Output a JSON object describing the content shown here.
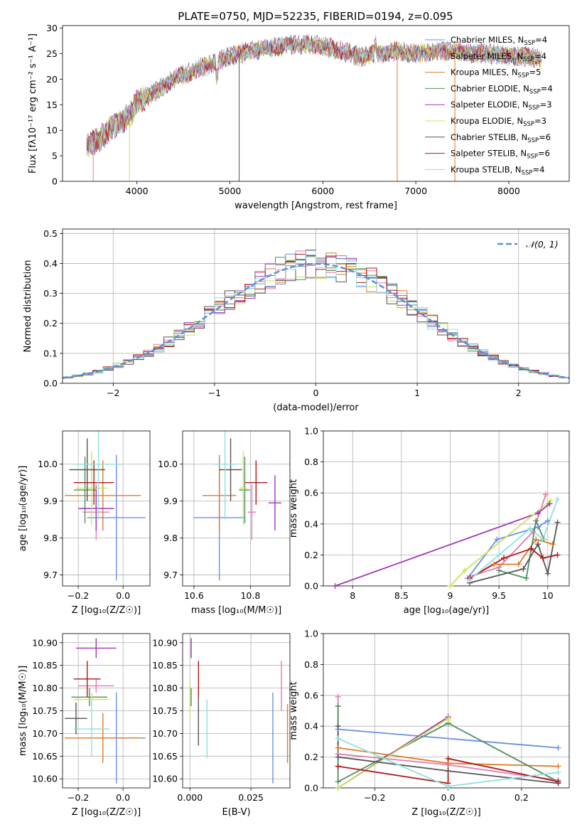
{
  "title": "PLATE=0750, MJD=52235, FIBERID=0194, z=0.095",
  "colors": {
    "Chabrier MILES": "#6a8fe6",
    "Salpeter MILES": "#e27ab6",
    "Kroupa MILES": "#e07b25",
    "Chabrier ELODIE": "#4f8f61",
    "Salpeter ELODIE": "#a233b5",
    "Kroupa ELODIE": "#c9e35d",
    "Chabrier STELIB": "#555555",
    "Salpeter STELIB": "#b01818",
    "Kroupa STELIB": "#8fdfe0",
    "normal": "#5b8fd6",
    "grid": "#b0b0b0"
  },
  "chart_data": [
    {
      "type": "line",
      "id": "spectrum",
      "xlabel": "wavelength [Angstrom, rest frame]",
      "ylabel": "Flux [fλ10⁻¹⁷ erg cm⁻² s⁻¹ A⁻¹]",
      "xlim": [
        3200,
        8650
      ],
      "ylim": [
        0,
        30.5
      ],
      "xticks": [
        4000,
        5000,
        6000,
        7000,
        8000
      ],
      "yticks": [
        0,
        5,
        10,
        15,
        20,
        25,
        30
      ],
      "grid": false,
      "legend_position": "right",
      "continuum": {
        "x": [
          3460,
          3550,
          3700,
          3850,
          3950,
          4000,
          4150,
          4300,
          4450,
          4600,
          4800,
          5000,
          5200,
          5400,
          5600,
          5800,
          6000,
          6200,
          6400,
          6600,
          6800,
          7000,
          7200,
          7400,
          7600,
          7800,
          8000,
          8200,
          8350
        ],
        "y": [
          7,
          7.5,
          10,
          12,
          13.5,
          15.5,
          17,
          19,
          20.5,
          21.5,
          23,
          24.5,
          25.5,
          26,
          26.5,
          27,
          26.5,
          25.5,
          24.5,
          25,
          25.5,
          25,
          25.5,
          25.5,
          25,
          25,
          24.5,
          24.5,
          24
        ]
      },
      "series": [
        {
          "name": "Chabrier MILES, N<sub>SSP</sub>=4",
          "label_main": "Chabrier MILES, N",
          "label_sub": "SSP",
          "label_tail": "=4"
        },
        {
          "name": "Salpeter MILES, N<sub>SSP</sub>=4",
          "label_main": "Salpeter MILES, N",
          "label_sub": "SSP",
          "label_tail": "=4"
        },
        {
          "name": "Kroupa MILES, N<sub>SSP</sub>=5",
          "label_main": "Kroupa MILES, N",
          "label_sub": "SSP",
          "label_tail": "=5"
        },
        {
          "name": "Chabrier ELODIE, N<sub>SSP</sub>=4",
          "label_main": "Chabrier ELODIE, N",
          "label_sub": "SSP",
          "label_tail": "=4"
        },
        {
          "name": "Salpeter ELODIE, N<sub>SSP</sub>=3",
          "label_main": "Salpeter ELODIE, N",
          "label_sub": "SSP",
          "label_tail": "=3"
        },
        {
          "name": "Kroupa ELODIE, N<sub>SSP</sub>=3",
          "label_main": "Kroupa ELODIE, N",
          "label_sub": "SSP",
          "label_tail": "=3"
        },
        {
          "name": "Chabrier STELIB, N<sub>SSP</sub>=6",
          "label_main": "Chabrier STELIB, N",
          "label_sub": "SSP",
          "label_tail": "=6"
        },
        {
          "name": "Salpeter STELIB, N<sub>SSP</sub>=6",
          "label_main": "Salpeter STELIB, N",
          "label_sub": "SSP",
          "label_tail": "=6"
        },
        {
          "name": "Kroupa STELIB, N<sub>SSP</sub>=4",
          "label_main": "Kroupa STELIB, N",
          "label_sub": "SSP",
          "label_tail": "=4"
        }
      ],
      "drops": [
        {
          "x": 3530,
          "y": 0
        },
        {
          "x": 3920,
          "y": 0
        },
        {
          "x": 5100,
          "y": 0
        },
        {
          "x": 6800,
          "y": 0
        },
        {
          "x": 7420,
          "y": 0
        }
      ]
    },
    {
      "type": "line",
      "id": "residuals",
      "xlabel": "(data-model)/error",
      "ylabel": "Normed distribution",
      "xlim": [
        -2.5,
        2.5
      ],
      "ylim": [
        0,
        0.515
      ],
      "xticks": [
        -2,
        -1,
        0,
        1,
        2
      ],
      "yticks": [
        0.0,
        0.1,
        0.2,
        0.3,
        0.4,
        0.5
      ],
      "xticklabels": [
        "−2",
        "−1",
        "0",
        "1",
        "2"
      ],
      "grid": true,
      "legend": "𝒩(0, 1)",
      "legend_position": "top-right",
      "bin_width": 0.1
    },
    {
      "type": "scatter",
      "id": "age_vs_Z",
      "xlabel": "Z [log₁₀(Z/Z☉)]",
      "ylabel": "age  [log₁₀(age/yr)]",
      "xlim": [
        -0.27,
        0.12
      ],
      "ylim": [
        9.67,
        10.09
      ],
      "xticks": [
        -0.2,
        0.0
      ],
      "xticklabels": [
        "−0.2",
        "0.0"
      ],
      "yticks": [
        9.7,
        9.8,
        9.9,
        10.0
      ],
      "grid": true,
      "points": [
        {
          "model": "Chabrier MILES",
          "x": -0.03,
          "xerr": 0.13,
          "y": 9.855,
          "yerr": 0.17
        },
        {
          "model": "Salpeter MILES",
          "x": -0.12,
          "xerr": 0.06,
          "y": 9.87,
          "yerr": 0.075
        },
        {
          "model": "Kroupa MILES",
          "x": -0.09,
          "xerr": 0.17,
          "y": 9.915,
          "yerr": 0.095
        },
        {
          "model": "Chabrier ELODIE",
          "x": -0.17,
          "xerr": 0.05,
          "y": 9.93,
          "yerr": 0.09
        },
        {
          "model": "Salpeter ELODIE",
          "x": -0.12,
          "xerr": 0.08,
          "y": 9.88,
          "yerr": 0.06
        },
        {
          "model": "Kroupa ELODIE",
          "x": -0.14,
          "xerr": 0.07,
          "y": 9.935,
          "yerr": 0.1
        },
        {
          "model": "Chabrier STELIB",
          "x": -0.16,
          "xerr": 0.08,
          "y": 9.985,
          "yerr": 0.085
        },
        {
          "model": "Salpeter STELIB",
          "x": -0.13,
          "xerr": 0.09,
          "y": 9.95,
          "yerr": 0.06
        },
        {
          "model": "Kroupa STELIB",
          "x": -0.11,
          "xerr": 0.11,
          "y": 10.0,
          "yerr": 0.15
        }
      ]
    },
    {
      "type": "scatter",
      "id": "age_vs_mass",
      "xlabel": "mass [log₁₀(M/M☉)]",
      "ylabel": "",
      "xlim": [
        10.56,
        10.94
      ],
      "ylim": [
        9.67,
        10.09
      ],
      "xticks": [
        10.6,
        10.8
      ],
      "yticks": [
        9.7,
        9.8,
        9.9,
        10.0
      ],
      "grid": true,
      "points": [
        {
          "model": "Chabrier MILES",
          "x": 10.69,
          "xerr": 0.09,
          "y": 9.855,
          "yerr": 0.17
        },
        {
          "model": "Salpeter MILES",
          "x": 10.805,
          "xerr": 0.015,
          "y": 9.87,
          "yerr": 0.075
        },
        {
          "model": "Kroupa MILES",
          "x": 10.69,
          "xerr": 0.06,
          "y": 9.915,
          "yerr": 0.095
        },
        {
          "model": "Chabrier ELODIE",
          "x": 10.78,
          "xerr": 0.02,
          "y": 9.93,
          "yerr": 0.09
        },
        {
          "model": "Salpeter ELODIE",
          "x": 10.887,
          "xerr": 0.023,
          "y": 9.895,
          "yerr": 0.075
        },
        {
          "model": "Kroupa ELODIE",
          "x": 10.775,
          "xerr": 0.015,
          "y": 9.935,
          "yerr": 0.1
        },
        {
          "model": "Chabrier STELIB",
          "x": 10.73,
          "xerr": 0.04,
          "y": 9.985,
          "yerr": 0.085
        },
        {
          "model": "Salpeter STELIB",
          "x": 10.82,
          "xerr": 0.04,
          "y": 9.95,
          "yerr": 0.06
        },
        {
          "model": "Kroupa STELIB",
          "x": 10.71,
          "xerr": 0.04,
          "y": 10.0,
          "yerr": 0.15
        }
      ]
    },
    {
      "type": "line",
      "id": "weight_vs_age",
      "xlabel": "age  [log₁₀(age/yr)]",
      "ylabel": "mass weight",
      "xlim": [
        7.7,
        10.22
      ],
      "ylim": [
        0,
        1.0
      ],
      "xticks": [
        8.0,
        8.5,
        9.0,
        9.5,
        10.0
      ],
      "yticks": [
        0.0,
        0.2,
        0.4,
        0.6,
        0.8,
        1.0
      ],
      "grid": true,
      "series": [
        {
          "model": "Chabrier MILES",
          "x": [
            9.18,
            9.48,
            9.9,
            10.0
          ],
          "y": [
            0.05,
            0.3,
            0.38,
            0.42
          ]
        },
        {
          "model": "Salpeter MILES",
          "x": [
            9.2,
            9.5,
            9.85,
            9.98
          ],
          "y": [
            0.06,
            0.12,
            0.35,
            0.59
          ]
        },
        {
          "model": "Kroupa MILES",
          "x": [
            9.2,
            9.45,
            9.7,
            9.88,
            10.05
          ],
          "y": [
            0.05,
            0.14,
            0.14,
            0.3,
            0.27
          ]
        },
        {
          "model": "Chabrier ELODIE",
          "x": [
            9.5,
            9.78,
            9.88,
            9.96
          ],
          "y": [
            0.1,
            0.05,
            0.42,
            0.3
          ]
        },
        {
          "model": "Salpeter ELODIE",
          "x": [
            7.82,
            9.9,
            10.02
          ],
          "y": [
            0.0,
            0.47,
            0.53
          ]
        },
        {
          "model": "Kroupa ELODIE",
          "x": [
            9.0,
            9.15,
            10.03
          ],
          "y": [
            0.0,
            0.1,
            0.55
          ]
        },
        {
          "model": "Chabrier STELIB",
          "x": [
            9.2,
            9.75,
            9.9,
            10.0,
            10.1
          ],
          "y": [
            0.02,
            0.11,
            0.27,
            0.08,
            0.41
          ]
        },
        {
          "model": "Salpeter STELIB",
          "x": [
            9.2,
            9.55,
            9.83,
            9.95,
            10.1
          ],
          "y": [
            0.05,
            0.18,
            0.24,
            0.18,
            0.2
          ]
        },
        {
          "model": "Kroupa STELIB",
          "x": [
            9.2,
            9.5,
            9.82,
            9.95,
            10.1
          ],
          "y": [
            0.04,
            0.2,
            0.37,
            0.3,
            0.56
          ]
        }
      ]
    },
    {
      "type": "scatter",
      "id": "mass_vs_Z",
      "xlabel": "Z [log₁₀(Z/Z☉)]",
      "ylabel": "mass [log₁₀(M/M☉)]",
      "xlim": [
        -0.27,
        0.12
      ],
      "ylim": [
        10.58,
        10.92
      ],
      "xticks": [
        -0.2,
        0.0
      ],
      "xticklabels": [
        "−0.2",
        "0.0"
      ],
      "yticks": [
        10.6,
        10.65,
        10.7,
        10.75,
        10.8,
        10.85,
        10.9
      ],
      "grid": true,
      "points": [
        {
          "model": "Chabrier MILES",
          "x": -0.03,
          "xerr": 0.13,
          "y": 10.69,
          "yerr": 0.1
        },
        {
          "model": "Salpeter MILES",
          "x": -0.12,
          "xerr": 0.08,
          "y": 10.805,
          "yerr": 0.015
        },
        {
          "model": "Kroupa MILES",
          "x": -0.09,
          "xerr": 0.17,
          "y": 10.69,
          "yerr": 0.055
        },
        {
          "model": "Chabrier ELODIE",
          "x": -0.15,
          "xerr": 0.08,
          "y": 10.78,
          "yerr": 0.02
        },
        {
          "model": "Salpeter ELODIE",
          "x": -0.12,
          "xerr": 0.09,
          "y": 10.888,
          "yerr": 0.022
        },
        {
          "model": "Kroupa ELODIE",
          "x": -0.14,
          "xerr": 0.08,
          "y": 10.775,
          "yerr": 0.015
        },
        {
          "model": "Chabrier STELIB",
          "x": -0.21,
          "xerr": 0.05,
          "y": 10.733,
          "yerr": 0.035
        },
        {
          "model": "Salpeter STELIB",
          "x": -0.16,
          "xerr": 0.06,
          "y": 10.82,
          "yerr": 0.04
        },
        {
          "model": "Kroupa STELIB",
          "x": -0.14,
          "xerr": 0.08,
          "y": 10.71,
          "yerr": 0.06
        }
      ]
    },
    {
      "type": "scatter",
      "id": "mass_vs_ebv",
      "xlabel": "E(B-V)",
      "ylabel": "",
      "xlim": [
        -0.003,
        0.041
      ],
      "ylim": [
        10.58,
        10.92
      ],
      "xticks": [
        0.0,
        0.025
      ],
      "xticklabels": [
        "0.000",
        "0.025"
      ],
      "yticks": [
        10.6,
        10.65,
        10.7,
        10.75,
        10.8,
        10.85,
        10.9
      ],
      "grid": true,
      "points": [
        {
          "model": "Chabrier MILES",
          "x": 0.034,
          "y": 10.69,
          "yerr": 0.1
        },
        {
          "model": "Salpeter MILES",
          "x": 0.0375,
          "y": 10.805,
          "yerr": 0.055
        },
        {
          "model": "Kroupa MILES",
          "x": 0.04,
          "y": 10.7,
          "yerr": 0.065
        },
        {
          "model": "Chabrier ELODIE",
          "x": 0.0005,
          "y": 10.78,
          "yerr": 0.02
        },
        {
          "model": "Salpeter ELODIE",
          "x": 0.0005,
          "y": 10.888,
          "yerr": 0.022
        },
        {
          "model": "Kroupa ELODIE",
          "x": 0.0,
          "y": 10.775,
          "yerr": 0.04
        },
        {
          "model": "Chabrier STELIB",
          "x": 0.0035,
          "y": 10.733,
          "yerr": 0.06
        },
        {
          "model": "Salpeter STELIB",
          "x": 0.0035,
          "y": 10.82,
          "yerr": 0.04
        },
        {
          "model": "Kroupa STELIB",
          "x": 0.007,
          "y": 10.71,
          "yerr": 0.065
        }
      ]
    },
    {
      "type": "line",
      "id": "weight_vs_Z",
      "xlabel": "Z [log₁₀(Z/Z☉)]",
      "ylabel": "mass weight",
      "xlim": [
        -0.34,
        0.33
      ],
      "ylim": [
        0,
        1.0
      ],
      "xticks": [
        -0.2,
        0.0,
        0.2
      ],
      "xticklabels": [
        "−0.2",
        "0.0",
        "0.2"
      ],
      "yticks": [
        0.0,
        0.2,
        0.4,
        0.6,
        0.8,
        1.0
      ],
      "grid": true,
      "series": [
        {
          "model": "Chabrier MILES",
          "x": [
            -0.3,
            0.3
          ],
          "y": [
            0.38,
            0.26
          ]
        },
        {
          "model": "Salpeter MILES",
          "x": [
            -0.3,
            -0.3,
            0.0,
            0.3
          ],
          "y": [
            0.59,
            0.22,
            0.15,
            0.05
          ]
        },
        {
          "model": "Kroupa MILES",
          "x": [
            -0.3,
            0.0,
            0.3
          ],
          "y": [
            0.26,
            0.16,
            0.14
          ]
        },
        {
          "model": "Chabrier ELODIE",
          "x": [
            -0.3,
            -0.3,
            0.0,
            0.3
          ],
          "y": [
            0.53,
            0.04,
            0.42,
            0.04
          ]
        },
        {
          "model": "Salpeter ELODIE",
          "x": [
            -0.3,
            0.0
          ],
          "y": [
            0.0,
            0.46
          ]
        },
        {
          "model": "Kroupa ELODIE",
          "x": [
            -0.3,
            0.0,
            0.0
          ],
          "y": [
            0.0,
            0.45,
            0.44
          ]
        },
        {
          "model": "Chabrier STELIB",
          "x": [
            -0.3,
            -0.3,
            0.0,
            0.3
          ],
          "y": [
            0.4,
            0.2,
            0.11,
            0.03
          ]
        },
        {
          "model": "Salpeter STELIB",
          "x": [
            -0.3,
            0.0,
            0.0,
            0.3
          ],
          "y": [
            0.14,
            0.03,
            0.19,
            0.04
          ]
        },
        {
          "model": "Kroupa STELIB",
          "x": [
            -0.3,
            0.0,
            0.3
          ],
          "y": [
            0.32,
            0.01,
            0.1
          ]
        }
      ]
    }
  ]
}
